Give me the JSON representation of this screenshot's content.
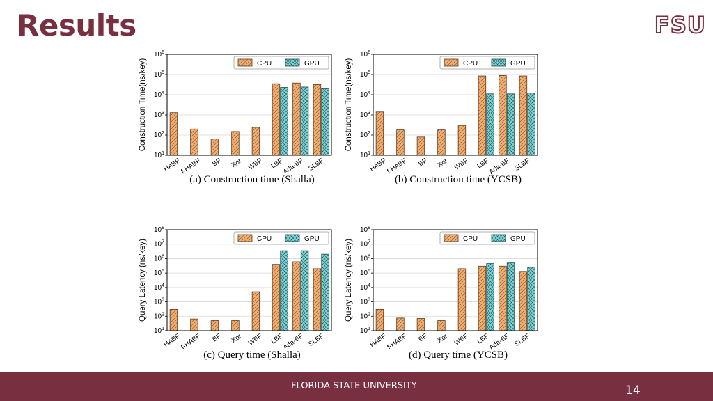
{
  "slide": {
    "title": "Results",
    "logo": "FSU"
  },
  "footer": {
    "text": "FLORIDA STATE UNIVERSITY",
    "page": "14"
  },
  "colors": {
    "brand": "#782f40",
    "cpu": "#f2ad6f",
    "gpu": "#7fd3d6"
  },
  "chart_data": [
    {
      "type": "bar",
      "scale": "log",
      "grid": true,
      "legend": "top-right",
      "title": "(a) Construction time (Shalla)",
      "ylabel": "Construction Time(ns/key)",
      "categories": [
        "HABF",
        "f-HABF",
        "BF",
        "Xor",
        "WBF",
        "LBF",
        "Ada-BF",
        "SLBF"
      ],
      "ylim": [
        10,
        1000000
      ],
      "yticks": [
        {
          "e": 1
        },
        {
          "e": 2
        },
        {
          "e": 3
        },
        {
          "e": 4
        },
        {
          "e": 5
        },
        {
          "e": 6
        }
      ],
      "series": [
        {
          "name": "CPU",
          "values": [
            1300,
            200,
            65,
            150,
            240,
            35000,
            38000,
            32000
          ]
        },
        {
          "name": "GPU",
          "values": [
            null,
            null,
            null,
            null,
            null,
            23000,
            24000,
            20000
          ]
        }
      ]
    },
    {
      "type": "bar",
      "scale": "log",
      "grid": true,
      "legend": "top-right",
      "title": "(b) Construction time (YCSB)",
      "ylabel": "Construction Time(ns/key)",
      "categories": [
        "HABF",
        "f-HABF",
        "BF",
        "Xor",
        "WBF",
        "LBF",
        "Ada-BF",
        "SLBF"
      ],
      "ylim": [
        10,
        1000000
      ],
      "yticks": [
        {
          "e": 1
        },
        {
          "e": 2
        },
        {
          "e": 3
        },
        {
          "e": 4
        },
        {
          "e": 5
        },
        {
          "e": 6
        }
      ],
      "series": [
        {
          "name": "CPU",
          "values": [
            1400,
            180,
            80,
            180,
            300,
            85000,
            90000,
            85000
          ]
        },
        {
          "name": "GPU",
          "values": [
            null,
            null,
            null,
            null,
            null,
            11000,
            11000,
            12000
          ]
        }
      ]
    },
    {
      "type": "bar",
      "scale": "log",
      "grid": true,
      "legend": "top-right",
      "title": "(c) Query time (Shalla)",
      "ylabel": "Query Latency (ns/key)",
      "categories": [
        "HABF",
        "f-HABF",
        "BF",
        "Xor",
        "WBF",
        "LBF",
        "Ada-BF",
        "SLBF"
      ],
      "ylim": [
        10,
        100000000
      ],
      "yticks": [
        {
          "e": 1
        },
        {
          "e": 2
        },
        {
          "e": 3
        },
        {
          "e": 4
        },
        {
          "e": 5
        },
        {
          "e": 6
        },
        {
          "e": 7
        },
        {
          "e": 8
        }
      ],
      "series": [
        {
          "name": "CPU",
          "values": [
            300,
            65,
            50,
            50,
            5000,
            400000,
            600000,
            200000
          ]
        },
        {
          "name": "GPU",
          "values": [
            null,
            null,
            null,
            null,
            null,
            3500000,
            3500000,
            2000000
          ]
        }
      ]
    },
    {
      "type": "bar",
      "scale": "log",
      "grid": true,
      "legend": "top-right",
      "title": "(d) Query time (YCSB)",
      "ylabel": "Query Latency (ns/key)",
      "categories": [
        "HABF",
        "f-HABF",
        "BF",
        "Xor",
        "WBF",
        "LBF",
        "Ada-BF",
        "SLBF"
      ],
      "ylim": [
        10,
        100000000
      ],
      "yticks": [
        {
          "e": 1
        },
        {
          "e": 2
        },
        {
          "e": 3
        },
        {
          "e": 4
        },
        {
          "e": 5
        },
        {
          "e": 6
        },
        {
          "e": 7
        },
        {
          "e": 8
        }
      ],
      "series": [
        {
          "name": "CPU",
          "values": [
            300,
            75,
            70,
            50,
            200000,
            300000,
            300000,
            130000
          ]
        },
        {
          "name": "GPU",
          "values": [
            null,
            null,
            null,
            null,
            null,
            450000,
            500000,
            250000
          ]
        }
      ]
    }
  ]
}
